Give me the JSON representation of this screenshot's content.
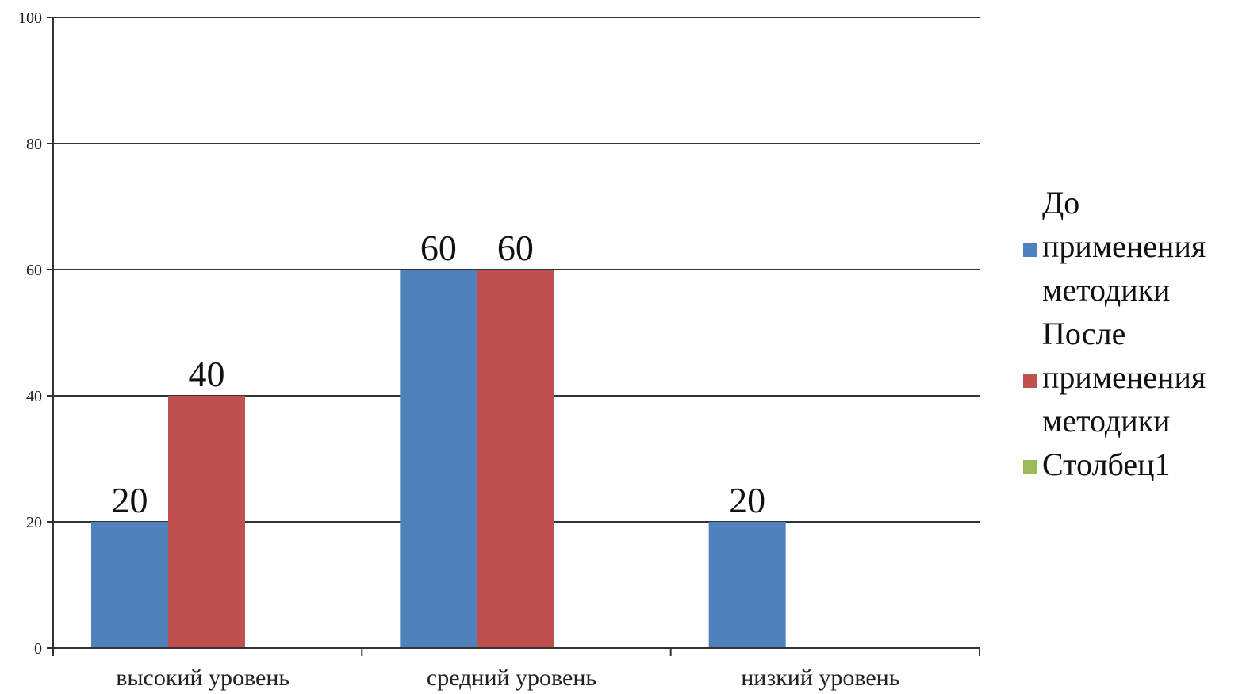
{
  "chart_data": {
    "type": "bar",
    "title": "",
    "xlabel": "",
    "ylabel": "",
    "categories": [
      "высокий уровень",
      "средний уровень",
      "низкий уровень"
    ],
    "series": [
      {
        "name": "До применения методики",
        "values": [
          20,
          60,
          20
        ],
        "color": "#4F81BD"
      },
      {
        "name": "После применения методики",
        "values": [
          40,
          60,
          0
        ],
        "color": "#C0504D"
      },
      {
        "name": "Столбец1",
        "values": [
          null,
          null,
          null
        ],
        "color": "#9BBB59"
      }
    ],
    "data_labels": [
      [
        "20",
        "60",
        "20"
      ],
      [
        "40",
        "60",
        ""
      ],
      [
        "",
        "",
        ""
      ]
    ],
    "ylim": [
      0,
      100
    ],
    "yticks": [
      0,
      20,
      40,
      60,
      80,
      100
    ],
    "grid": true,
    "legend": "right"
  }
}
